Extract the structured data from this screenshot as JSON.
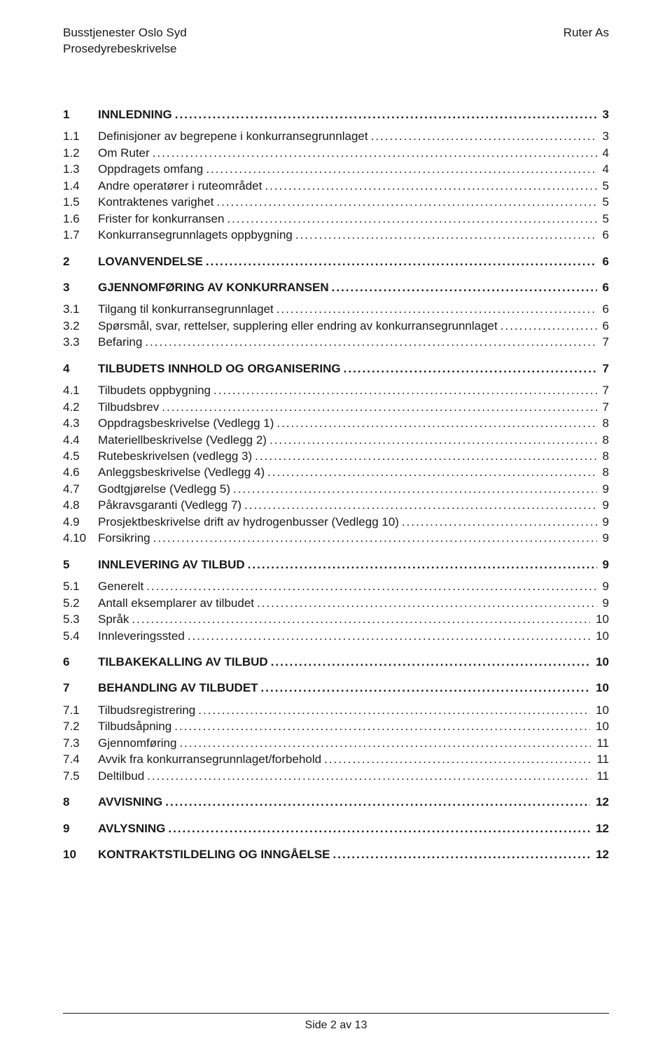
{
  "header": {
    "leftLine1": "Busstjenester Oslo Syd",
    "leftLine2": "Prosedyrebeskrivelse",
    "right": "Ruter As"
  },
  "toc": [
    {
      "level": 1,
      "num": "1",
      "title": "INNLEDNING",
      "page": "3"
    },
    {
      "level": 2,
      "num": "1.1",
      "title": "Definisjoner av begrepene i konkurransegrunnlaget",
      "page": "3",
      "gap": true
    },
    {
      "level": 2,
      "num": "1.2",
      "title": "Om Ruter",
      "page": "4"
    },
    {
      "level": 2,
      "num": "1.3",
      "title": "Oppdragets omfang",
      "page": "4"
    },
    {
      "level": 2,
      "num": "1.4",
      "title": "Andre operatører i ruteområdet",
      "page": "5"
    },
    {
      "level": 2,
      "num": "1.5",
      "title": "Kontraktenes varighet",
      "page": "5"
    },
    {
      "level": 2,
      "num": "1.6",
      "title": "Frister for konkurransen",
      "page": "5"
    },
    {
      "level": 2,
      "num": "1.7",
      "title": "Konkurransegrunnlagets oppbygning",
      "page": "6"
    },
    {
      "level": 1,
      "num": "2",
      "title": "LOVANVENDELSE",
      "page": "6"
    },
    {
      "level": 1,
      "num": "3",
      "title": "GJENNOMFØRING AV KONKURRANSEN",
      "page": "6"
    },
    {
      "level": 2,
      "num": "3.1",
      "title": "Tilgang til konkurransegrunnlaget",
      "page": "6",
      "gap": true
    },
    {
      "level": 2,
      "num": "3.2",
      "title": "Spørsmål, svar, rettelser, supplering eller endring av konkurransegrunnlaget",
      "page": "6"
    },
    {
      "level": 2,
      "num": "3.3",
      "title": "Befaring",
      "page": "7"
    },
    {
      "level": 1,
      "num": "4",
      "title": "TILBUDETS INNHOLD OG ORGANISERING",
      "page": "7"
    },
    {
      "level": 2,
      "num": "4.1",
      "title": "Tilbudets oppbygning",
      "page": "7",
      "gap": true
    },
    {
      "level": 2,
      "num": "4.2",
      "title": "Tilbudsbrev",
      "page": "7"
    },
    {
      "level": 2,
      "num": "4.3",
      "title": "Oppdragsbeskrivelse (Vedlegg 1)",
      "page": "8"
    },
    {
      "level": 2,
      "num": "4.4",
      "title": "Materiellbeskrivelse (Vedlegg 2)",
      "page": "8"
    },
    {
      "level": 2,
      "num": "4.5",
      "title": "Rutebeskrivelsen (vedlegg 3)",
      "page": "8"
    },
    {
      "level": 2,
      "num": "4.6",
      "title": "Anleggsbeskrivelse (Vedlegg 4)",
      "page": "8"
    },
    {
      "level": 2,
      "num": "4.7",
      "title": "Godtgjørelse (Vedlegg 5)",
      "page": "9"
    },
    {
      "level": 2,
      "num": "4.8",
      "title": "Påkravsgaranti (Vedlegg 7)",
      "page": "9"
    },
    {
      "level": 2,
      "num": "4.9",
      "title": "Prosjektbeskrivelse drift av hydrogenbusser (Vedlegg 10)",
      "page": "9"
    },
    {
      "level": 2,
      "num": "4.10",
      "title": "Forsikring",
      "page": "9"
    },
    {
      "level": 1,
      "num": "5",
      "title": "INNLEVERING AV TILBUD",
      "page": "9"
    },
    {
      "level": 2,
      "num": "5.1",
      "title": "Generelt",
      "page": "9",
      "gap": true
    },
    {
      "level": 2,
      "num": "5.2",
      "title": "Antall eksemplarer av tilbudet",
      "page": "9"
    },
    {
      "level": 2,
      "num": "5.3",
      "title": "Språk",
      "page": "10"
    },
    {
      "level": 2,
      "num": "5.4",
      "title": "Innleveringssted",
      "page": "10"
    },
    {
      "level": 1,
      "num": "6",
      "title": "TILBAKEKALLING AV TILBUD",
      "page": "10"
    },
    {
      "level": 1,
      "num": "7",
      "title": "BEHANDLING AV TILBUDET",
      "page": "10"
    },
    {
      "level": 2,
      "num": "7.1",
      "title": "Tilbudsregistrering",
      "page": "10",
      "gap": true
    },
    {
      "level": 2,
      "num": "7.2",
      "title": "Tilbudsåpning",
      "page": "10"
    },
    {
      "level": 2,
      "num": "7.3",
      "title": "Gjennomføring",
      "page": "11"
    },
    {
      "level": 2,
      "num": "7.4",
      "title": "Avvik fra konkurransegrunnlaget/forbehold",
      "page": "11"
    },
    {
      "level": 2,
      "num": "7.5",
      "title": "Deltilbud",
      "page": "11"
    },
    {
      "level": 1,
      "num": "8",
      "title": "AVVISNING",
      "page": "12"
    },
    {
      "level": 1,
      "num": "9",
      "title": "AVLYSNING",
      "page": "12"
    },
    {
      "level": 1,
      "num": "10",
      "title": "KONTRAKTSTILDELING OG INNGÅELSE",
      "page": "12"
    }
  ],
  "footer": {
    "text": "Side 2 av 13"
  }
}
